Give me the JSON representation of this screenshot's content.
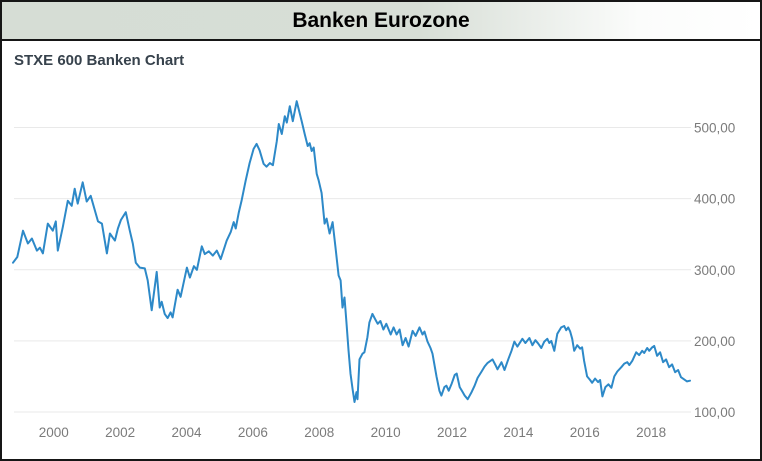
{
  "window": {
    "title": "Banken Eurozone"
  },
  "colors": {
    "line": "#2d89c8",
    "gridline": "#e9e9e9",
    "tick_text": "#7b7b7b",
    "subtitle_text": "#37424c",
    "titlebar_left": "#d6ddd5",
    "titlebar_right": "#ffffff",
    "border": "#161616"
  },
  "chart_data": {
    "type": "line",
    "title": "Banken Eurozone",
    "subtitle": "STXE 600 Banken Chart",
    "xlabel": "",
    "ylabel": "",
    "grid": "horizontal",
    "legend": "none",
    "xlim": [
      1998.77,
      2019.2
    ],
    "ylim": [
      100,
      550
    ],
    "x_ticks": [
      2000,
      2002,
      2004,
      2006,
      2008,
      2010,
      2012,
      2014,
      2016,
      2018
    ],
    "y_ticks": [
      100,
      200,
      300,
      400,
      500
    ],
    "y_tick_labels": [
      "100,00",
      "200,00",
      "300,00",
      "400,00",
      "500,00"
    ],
    "series": [
      {
        "name": "STXE 600 Banken",
        "points": [
          [
            1998.77,
            310
          ],
          [
            1998.9,
            318
          ],
          [
            1999.07,
            355
          ],
          [
            1999.22,
            337
          ],
          [
            1999.34,
            344
          ],
          [
            1999.49,
            327
          ],
          [
            1999.58,
            331
          ],
          [
            1999.67,
            323
          ],
          [
            1999.82,
            365
          ],
          [
            1999.97,
            355
          ],
          [
            2000.06,
            368
          ],
          [
            2000.12,
            327
          ],
          [
            2000.27,
            360
          ],
          [
            2000.42,
            397
          ],
          [
            2000.54,
            390
          ],
          [
            2000.63,
            414
          ],
          [
            2000.72,
            393
          ],
          [
            2000.87,
            423
          ],
          [
            2000.99,
            396
          ],
          [
            2001.11,
            404
          ],
          [
            2001.33,
            368
          ],
          [
            2001.45,
            365
          ],
          [
            2001.6,
            323
          ],
          [
            2001.69,
            351
          ],
          [
            2001.78,
            345
          ],
          [
            2001.84,
            341
          ],
          [
            2001.93,
            358
          ],
          [
            2002.02,
            370
          ],
          [
            2002.17,
            381
          ],
          [
            2002.29,
            355
          ],
          [
            2002.38,
            337
          ],
          [
            2002.47,
            310
          ],
          [
            2002.59,
            303
          ],
          [
            2002.74,
            302
          ],
          [
            2002.83,
            285
          ],
          [
            2002.95,
            243
          ],
          [
            2003.1,
            297
          ],
          [
            2003.19,
            247
          ],
          [
            2003.25,
            255
          ],
          [
            2003.34,
            238
          ],
          [
            2003.43,
            232
          ],
          [
            2003.52,
            240
          ],
          [
            2003.58,
            233
          ],
          [
            2003.73,
            272
          ],
          [
            2003.82,
            262
          ],
          [
            2004.01,
            303
          ],
          [
            2004.1,
            289
          ],
          [
            2004.22,
            305
          ],
          [
            2004.31,
            300
          ],
          [
            2004.46,
            333
          ],
          [
            2004.55,
            322
          ],
          [
            2004.67,
            326
          ],
          [
            2004.79,
            320
          ],
          [
            2004.91,
            327
          ],
          [
            2005.03,
            315
          ],
          [
            2005.21,
            341
          ],
          [
            2005.33,
            353
          ],
          [
            2005.42,
            367
          ],
          [
            2005.48,
            358
          ],
          [
            2005.57,
            380
          ],
          [
            2005.66,
            398
          ],
          [
            2005.78,
            425
          ],
          [
            2005.9,
            450
          ],
          [
            2006.02,
            470
          ],
          [
            2006.11,
            477
          ],
          [
            2006.2,
            468
          ],
          [
            2006.32,
            449
          ],
          [
            2006.41,
            445
          ],
          [
            2006.51,
            450
          ],
          [
            2006.6,
            447
          ],
          [
            2006.72,
            481
          ],
          [
            2006.78,
            505
          ],
          [
            2006.87,
            491
          ],
          [
            2006.96,
            516
          ],
          [
            2007.02,
            507
          ],
          [
            2007.11,
            530
          ],
          [
            2007.2,
            509
          ],
          [
            2007.32,
            537
          ],
          [
            2007.41,
            520
          ],
          [
            2007.47,
            509
          ],
          [
            2007.56,
            491
          ],
          [
            2007.65,
            474
          ],
          [
            2007.71,
            478
          ],
          [
            2007.77,
            467
          ],
          [
            2007.83,
            472
          ],
          [
            2007.92,
            435
          ],
          [
            2007.98,
            426
          ],
          [
            2008.07,
            408
          ],
          [
            2008.16,
            365
          ],
          [
            2008.22,
            372
          ],
          [
            2008.31,
            351
          ],
          [
            2008.4,
            367
          ],
          [
            2008.49,
            330
          ],
          [
            2008.58,
            292
          ],
          [
            2008.64,
            285
          ],
          [
            2008.7,
            247
          ],
          [
            2008.76,
            261
          ],
          [
            2008.82,
            225
          ],
          [
            2008.88,
            187
          ],
          [
            2008.94,
            154
          ],
          [
            2009.0,
            133
          ],
          [
            2009.06,
            114
          ],
          [
            2009.12,
            128
          ],
          [
            2009.15,
            118
          ],
          [
            2009.21,
            174
          ],
          [
            2009.3,
            182
          ],
          [
            2009.36,
            184
          ],
          [
            2009.45,
            205
          ],
          [
            2009.51,
            226
          ],
          [
            2009.6,
            238
          ],
          [
            2009.69,
            230
          ],
          [
            2009.76,
            224
          ],
          [
            2009.84,
            228
          ],
          [
            2009.93,
            216
          ],
          [
            2010.02,
            224
          ],
          [
            2010.15,
            209
          ],
          [
            2010.24,
            219
          ],
          [
            2010.33,
            209
          ],
          [
            2010.42,
            216
          ],
          [
            2010.51,
            194
          ],
          [
            2010.6,
            204
          ],
          [
            2010.69,
            192
          ],
          [
            2010.81,
            214
          ],
          [
            2010.9,
            207
          ],
          [
            2011.02,
            219
          ],
          [
            2011.11,
            209
          ],
          [
            2011.17,
            213
          ],
          [
            2011.26,
            199
          ],
          [
            2011.35,
            190
          ],
          [
            2011.41,
            182
          ],
          [
            2011.53,
            150
          ],
          [
            2011.62,
            130
          ],
          [
            2011.68,
            123
          ],
          [
            2011.77,
            135
          ],
          [
            2011.83,
            137
          ],
          [
            2011.9,
            130
          ],
          [
            2011.99,
            140
          ],
          [
            2012.08,
            152
          ],
          [
            2012.14,
            154
          ],
          [
            2012.23,
            135
          ],
          [
            2012.32,
            128
          ],
          [
            2012.38,
            123
          ],
          [
            2012.47,
            118
          ],
          [
            2012.59,
            128
          ],
          [
            2012.68,
            137
          ],
          [
            2012.77,
            148
          ],
          [
            2012.89,
            157
          ],
          [
            2012.98,
            164
          ],
          [
            2013.07,
            169
          ],
          [
            2013.22,
            174
          ],
          [
            2013.31,
            166
          ],
          [
            2013.37,
            160
          ],
          [
            2013.49,
            170
          ],
          [
            2013.58,
            159
          ],
          [
            2013.7,
            175
          ],
          [
            2013.79,
            186
          ],
          [
            2013.88,
            199
          ],
          [
            2013.97,
            192
          ],
          [
            2014.12,
            203
          ],
          [
            2014.21,
            197
          ],
          [
            2014.33,
            204
          ],
          [
            2014.42,
            194
          ],
          [
            2014.51,
            201
          ],
          [
            2014.6,
            196
          ],
          [
            2014.69,
            190
          ],
          [
            2014.78,
            199
          ],
          [
            2014.87,
            203
          ],
          [
            2014.93,
            197
          ],
          [
            2014.99,
            200
          ],
          [
            2015.08,
            186
          ],
          [
            2015.17,
            210
          ],
          [
            2015.29,
            219
          ],
          [
            2015.38,
            221
          ],
          [
            2015.44,
            215
          ],
          [
            2015.5,
            219
          ],
          [
            2015.56,
            213
          ],
          [
            2015.62,
            203
          ],
          [
            2015.68,
            186
          ],
          [
            2015.77,
            194
          ],
          [
            2015.86,
            189
          ],
          [
            2015.92,
            191
          ],
          [
            2015.98,
            172
          ],
          [
            2016.07,
            150
          ],
          [
            2016.16,
            145
          ],
          [
            2016.22,
            141
          ],
          [
            2016.31,
            147
          ],
          [
            2016.4,
            142
          ],
          [
            2016.46,
            145
          ],
          [
            2016.53,
            122
          ],
          [
            2016.62,
            135
          ],
          [
            2016.71,
            139
          ],
          [
            2016.8,
            134
          ],
          [
            2016.89,
            150
          ],
          [
            2016.98,
            157
          ],
          [
            2017.1,
            163
          ],
          [
            2017.19,
            168
          ],
          [
            2017.28,
            170
          ],
          [
            2017.34,
            166
          ],
          [
            2017.43,
            172
          ],
          [
            2017.55,
            184
          ],
          [
            2017.64,
            180
          ],
          [
            2017.73,
            186
          ],
          [
            2017.79,
            183
          ],
          [
            2017.88,
            190
          ],
          [
            2017.94,
            186
          ],
          [
            2018.03,
            191
          ],
          [
            2018.09,
            193
          ],
          [
            2018.18,
            179
          ],
          [
            2018.27,
            184
          ],
          [
            2018.36,
            170
          ],
          [
            2018.45,
            174
          ],
          [
            2018.54,
            163
          ],
          [
            2018.63,
            167
          ],
          [
            2018.72,
            156
          ],
          [
            2018.81,
            159
          ],
          [
            2018.9,
            149
          ],
          [
            2018.99,
            146
          ],
          [
            2019.08,
            143
          ],
          [
            2019.17,
            144
          ]
        ]
      }
    ]
  }
}
